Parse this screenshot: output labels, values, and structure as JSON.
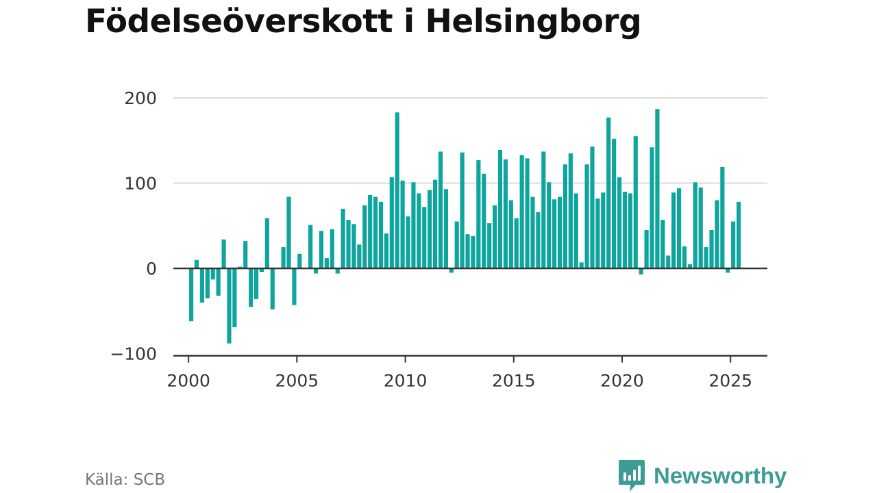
{
  "header": {
    "title": "Födelseöverskott i Helsingborg"
  },
  "footer": {
    "source": "Källa: SCB",
    "brand": "Newsworthy"
  },
  "colors": {
    "bar": "#0ea59e",
    "grid": "#dddddd",
    "axis": "#333333",
    "brand": "#3d9c93"
  },
  "icons": {
    "brand_logo": "bar-chart-speech-bubble-icon"
  },
  "chart_data": {
    "type": "bar",
    "title": "Födelseöverskott i Helsingborg",
    "xlabel": "",
    "ylabel": "",
    "x_start": 2000,
    "x_step": 0.25,
    "xlim": [
      1999.3,
      2026.7
    ],
    "ylim": [
      -100,
      200
    ],
    "yticks": [
      -100,
      0,
      100,
      200
    ],
    "ytick_labels": [
      "−100",
      "0",
      "100",
      "200"
    ],
    "xticks": [
      2000,
      2005,
      2010,
      2015,
      2020,
      2025
    ],
    "grid": true,
    "series": [
      {
        "values": [
          -62,
          10,
          -40,
          -35,
          -13,
          -32,
          34,
          -88,
          -69,
          2,
          32,
          -45,
          -36,
          -4,
          59,
          -48,
          0,
          25,
          84,
          -43,
          17,
          0,
          51,
          -6,
          44,
          12,
          46,
          -6,
          70,
          57,
          52,
          28,
          74,
          86,
          84,
          78,
          41,
          107,
          183,
          103,
          61,
          101,
          88,
          72,
          92,
          104,
          137,
          93,
          -5,
          55,
          136,
          40,
          38,
          127,
          111,
          53,
          74,
          139,
          128,
          80,
          59,
          133,
          129,
          84,
          66,
          137,
          101,
          81,
          84,
          122,
          135,
          88,
          7,
          122,
          143,
          82,
          89,
          177,
          152,
          107,
          90,
          88,
          155,
          -7,
          45,
          142,
          187,
          57,
          15,
          89,
          94,
          26,
          5,
          101,
          95,
          25,
          45,
          80,
          119,
          -5,
          55,
          78
        ]
      }
    ]
  }
}
